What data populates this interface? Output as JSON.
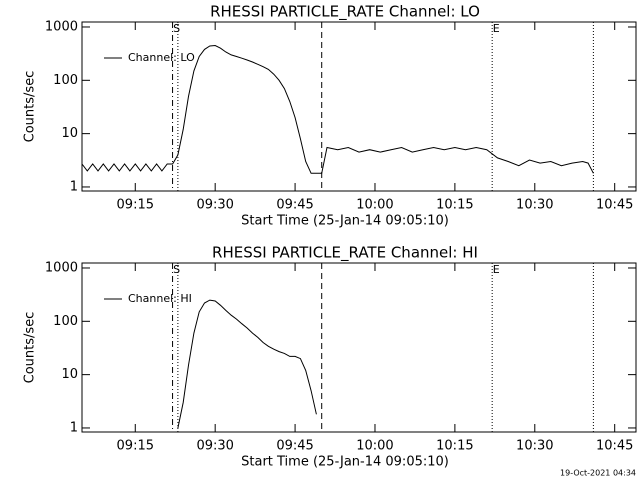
{
  "chart_data": [
    {
      "type": "line",
      "title": "RHESSI PARTICLE_RATE Channel: LO",
      "ylabel": "Counts/sec",
      "xlabel": "Start Time (25-Jan-14 09:05:10)",
      "ylog": true,
      "ylim": [
        0.84,
        1240
      ],
      "yticks": [
        1,
        10,
        100,
        1000
      ],
      "xlim": [
        "09:05",
        "10:49"
      ],
      "xticks": [
        "09:15",
        "09:30",
        "09:45",
        "10:00",
        "10:15",
        "10:30",
        "10:45"
      ],
      "legend": "upper left",
      "series": [
        {
          "name": "Channel: LO",
          "color": "#000000",
          "x": [
            "09:05",
            "09:06",
            "09:07",
            "09:08",
            "09:09",
            "09:10",
            "09:11",
            "09:12",
            "09:13",
            "09:14",
            "09:15",
            "09:16",
            "09:17",
            "09:18",
            "09:19",
            "09:20",
            "09:21",
            "09:22",
            "09:23",
            "09:24",
            "09:25",
            "09:26",
            "09:27",
            "09:28",
            "09:29",
            "09:30",
            "09:31",
            "09:32",
            "09:33",
            "09:34",
            "09:35",
            "09:36",
            "09:37",
            "09:38",
            "09:39",
            "09:40",
            "09:41",
            "09:42",
            "09:43",
            "09:44",
            "09:45",
            "09:46",
            "09:47",
            "09:48",
            "09:49",
            "09:50",
            "09:51",
            "09:53",
            "09:55",
            "09:57",
            "09:59",
            "10:01",
            "10:03",
            "10:05",
            "10:07",
            "10:09",
            "10:11",
            "10:13",
            "10:15",
            "10:17",
            "10:19",
            "10:21",
            "10:23",
            "10:25",
            "10:27",
            "10:29",
            "10:31",
            "10:33",
            "10:35",
            "10:37",
            "10:39",
            "10:40",
            "10:41"
          ],
          "values": [
            2.7,
            2,
            2.7,
            2,
            2.7,
            2,
            2.7,
            2,
            2.7,
            2,
            2.7,
            2,
            2.7,
            2,
            2.7,
            2,
            2.7,
            2.7,
            4,
            12,
            50,
            150,
            280,
            380,
            440,
            450,
            400,
            340,
            300,
            280,
            260,
            240,
            220,
            200,
            180,
            160,
            130,
            100,
            70,
            40,
            20,
            8,
            3,
            1.8,
            1.8,
            1.8,
            5.5,
            5,
            5.5,
            4.5,
            5,
            4.5,
            5,
            5.5,
            4.5,
            5,
            5.5,
            5,
            5.5,
            5,
            5.5,
            5,
            3.5,
            3,
            2.5,
            3.2,
            2.8,
            3,
            2.5,
            2.8,
            3,
            2.8,
            1.8
          ]
        }
      ],
      "vlines": [
        {
          "x": "09:22",
          "style": "dashdot",
          "label": "S"
        },
        {
          "x": "09:23",
          "style": "dotted"
        },
        {
          "x": "09:50",
          "style": "dashed"
        },
        {
          "x": "10:22",
          "style": "dotted",
          "label": "E"
        },
        {
          "x": "10:41",
          "style": "dotted"
        }
      ]
    },
    {
      "type": "line",
      "title": "RHESSI PARTICLE_RATE Channel: HI",
      "ylabel": "Counts/sec",
      "xlabel": "Start Time (25-Jan-14 09:05:10)",
      "ylog": true,
      "ylim": [
        0.84,
        1240
      ],
      "yticks": [
        1,
        10,
        100,
        1000
      ],
      "xlim": [
        "09:05",
        "10:49"
      ],
      "xticks": [
        "09:15",
        "09:30",
        "09:45",
        "10:00",
        "10:15",
        "10:30",
        "10:45"
      ],
      "legend": "upper left",
      "series": [
        {
          "name": "Channel: HI",
          "color": "#000000",
          "x": [
            "09:23",
            "09:24",
            "09:25",
            "09:26",
            "09:27",
            "09:28",
            "09:29",
            "09:30",
            "09:31",
            "09:32",
            "09:33",
            "09:34",
            "09:35",
            "09:36",
            "09:37",
            "09:38",
            "09:39",
            "09:40",
            "09:41",
            "09:42",
            "09:43",
            "09:44",
            "09:45",
            "09:46",
            "09:47",
            "09:48",
            "09:49"
          ],
          "values": [
            1,
            3,
            15,
            60,
            150,
            220,
            250,
            240,
            200,
            160,
            130,
            110,
            90,
            75,
            60,
            50,
            40,
            34,
            30,
            27,
            25,
            22,
            22,
            20,
            12,
            5,
            1.8
          ]
        }
      ],
      "vlines": [
        {
          "x": "09:22",
          "style": "dashdot",
          "label": "S"
        },
        {
          "x": "09:23",
          "style": "dotted"
        },
        {
          "x": "09:50",
          "style": "dashed"
        },
        {
          "x": "10:22",
          "style": "dotted",
          "label": "E"
        },
        {
          "x": "10:41",
          "style": "dotted"
        }
      ]
    }
  ],
  "footer": "19-Oct-2021 04:34"
}
